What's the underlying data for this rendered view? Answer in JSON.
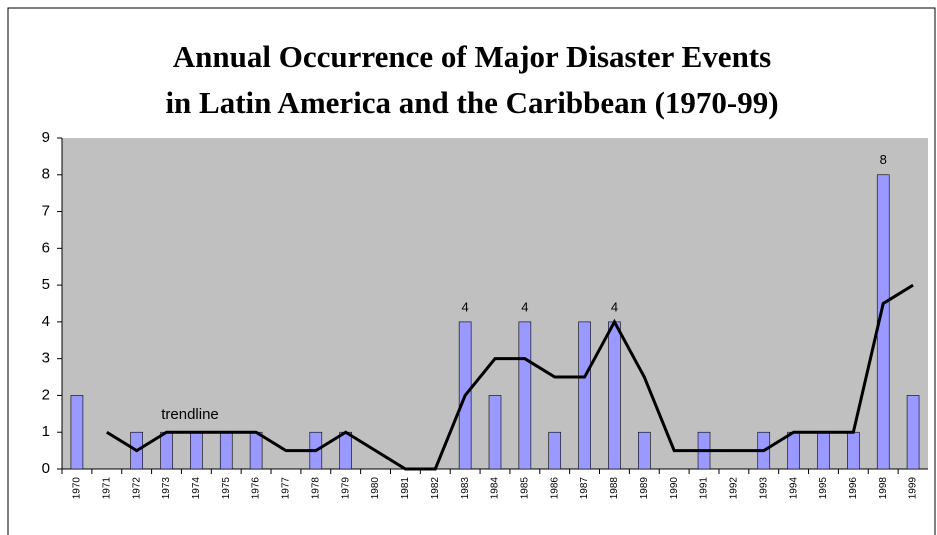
{
  "chart_data": {
    "type": "bar",
    "title": [
      "Annual Occurrence of Major Disaster Events",
      "in Latin America and the Caribbean (1970-99)"
    ],
    "categories": [
      "1970",
      "1971",
      "1972",
      "1973",
      "1974",
      "1975",
      "1976",
      "1977",
      "1978",
      "1979",
      "1980",
      "1981",
      "1982",
      "1983",
      "1984",
      "1985",
      "1986",
      "1987",
      "1988",
      "1989",
      "1990",
      "1991",
      "1992",
      "1993",
      "1994",
      "1995",
      "1996",
      "1998",
      "1999"
    ],
    "series": [
      {
        "type": "bar",
        "color": "#9999ff",
        "values": [
          2,
          0,
          1,
          1,
          1,
          1,
          1,
          0,
          1,
          1,
          0,
          0,
          0,
          4,
          2,
          4,
          1,
          4,
          4,
          1,
          0,
          1,
          0,
          1,
          1,
          1,
          1,
          8,
          2
        ],
        "value_labels": [
          null,
          null,
          null,
          null,
          null,
          null,
          null,
          null,
          null,
          null,
          null,
          null,
          null,
          "4",
          null,
          "4",
          null,
          null,
          "4",
          null,
          null,
          null,
          null,
          null,
          null,
          null,
          null,
          "8",
          null
        ]
      },
      {
        "type": "line",
        "color": "#000000",
        "values": [
          null,
          1,
          0.5,
          1,
          1,
          1,
          1,
          0.5,
          0.5,
          1,
          0.5,
          0,
          0,
          2,
          3,
          3,
          2.5,
          2.5,
          4,
          2.5,
          0.5,
          0.5,
          0.5,
          0.5,
          1,
          1,
          1,
          4.5,
          5
        ]
      }
    ],
    "annotation": "trendline",
    "ylim": [
      0,
      9
    ],
    "yticks": [
      0,
      1,
      2,
      3,
      4,
      5,
      6,
      7,
      8,
      9
    ],
    "plot_background": "#c0c0c0"
  }
}
